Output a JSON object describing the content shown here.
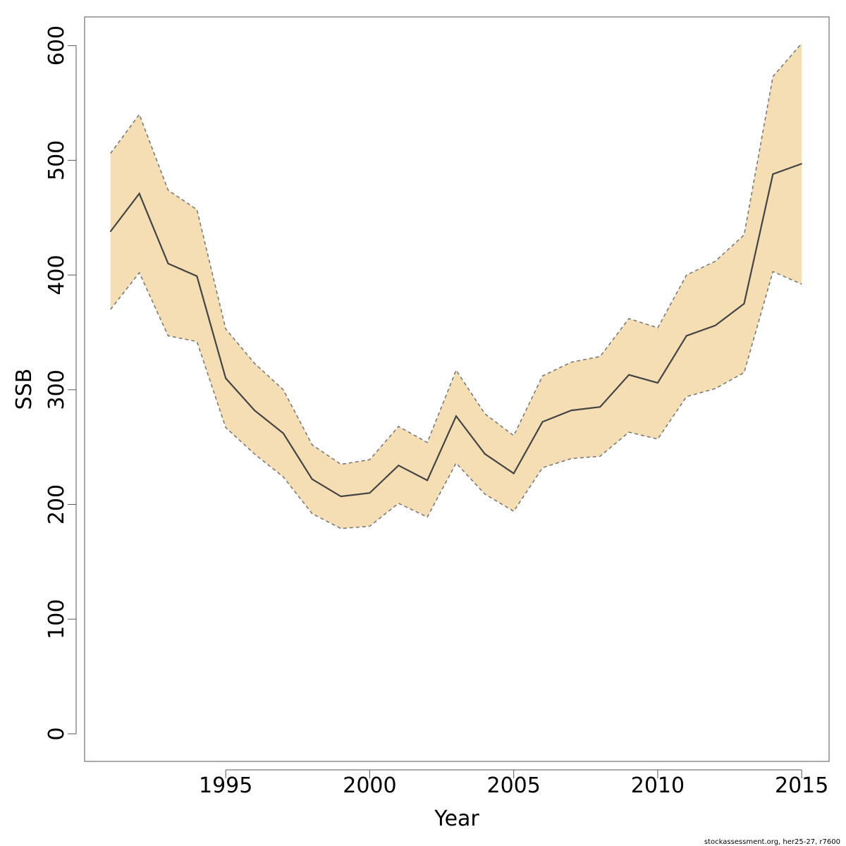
{
  "chart_data": {
    "type": "line",
    "title": "",
    "xlabel": "Year",
    "ylabel": "SSB",
    "xlim": [
      1990.1,
      2015.95
    ],
    "ylim": [
      -24,
      625
    ],
    "x_ticks": [
      1995,
      2000,
      2005,
      2010,
      2015
    ],
    "y_ticks": [
      0,
      100,
      200,
      300,
      400,
      500,
      600
    ],
    "x_tick_labels": [
      "1995",
      "2000",
      "2005",
      "2010",
      "2015"
    ],
    "y_tick_labels": [
      "0",
      "100",
      "200",
      "300",
      "400",
      "500",
      "600"
    ],
    "grid": false,
    "legend": "none",
    "x": [
      1991,
      1992,
      1993,
      1994,
      1995,
      1996,
      1997,
      1998,
      1999,
      2000,
      2001,
      2002,
      2003,
      2004,
      2005,
      2006,
      2007,
      2008,
      2009,
      2010,
      2011,
      2012,
      2013,
      2014,
      2015
    ],
    "series": [
      {
        "role": "estimate",
        "values": [
          438,
          471,
          410,
          399,
          310,
          282,
          262,
          222,
          207,
          210,
          234,
          221,
          277,
          244,
          227,
          272,
          282,
          285,
          313,
          306,
          347,
          356,
          375,
          488,
          497
        ]
      }
    ],
    "band": {
      "lower": [
        370,
        402,
        347,
        342,
        267,
        244,
        224,
        192,
        179,
        181,
        201,
        189,
        236,
        209,
        194,
        232,
        240,
        242,
        263,
        257,
        294,
        301,
        315,
        403,
        392
      ],
      "upper": [
        506,
        540,
        474,
        457,
        353,
        323,
        300,
        252,
        235,
        239,
        268,
        254,
        317,
        279,
        260,
        312,
        324,
        329,
        362,
        354,
        400,
        412,
        435,
        573,
        602
      ]
    },
    "colors": {
      "band_fill": "#f5deb3",
      "band_edge": "#7a7a7a",
      "line": "#444444",
      "axis": "#555555"
    }
  },
  "footer": "stockassessment.org, her25-27, r7600"
}
